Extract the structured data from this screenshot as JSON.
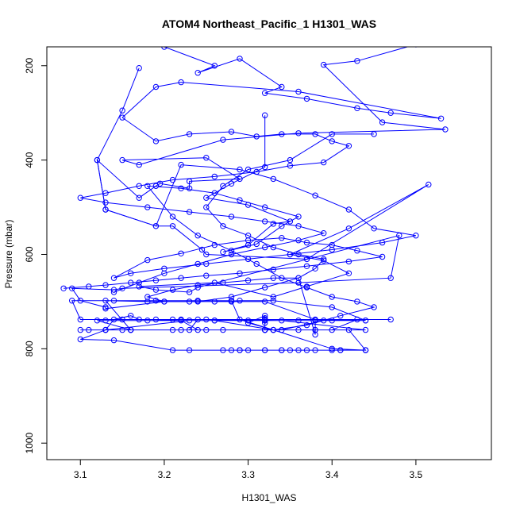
{
  "chart_data": {
    "type": "line",
    "title": "ATOM4 Northeast_Pacific_1 H1301_WAS",
    "xlabel": "H1301_WAS",
    "ylabel": "Pressure (mbar)",
    "xlim": [
      3.06,
      3.59
    ],
    "ylim": [
      1035,
      160
    ],
    "y_reversed": true,
    "x_ticks": [
      "3.1",
      "3.2",
      "3.3",
      "3.4",
      "3.5"
    ],
    "y_ticks": [
      "200",
      "400",
      "600",
      "800",
      "1000"
    ],
    "grid": false,
    "legend": "none",
    "series": [
      {
        "color": "#0000ff",
        "marker": "open-circle",
        "x": [
          3.5,
          3.43,
          3.39,
          3.46,
          3.535,
          3.36,
          3.27,
          3.17,
          3.15,
          3.25,
          3.29,
          3.23,
          3.23,
          3.195,
          3.19,
          3.17,
          3.12,
          3.13,
          3.19,
          3.21,
          3.245,
          3.25,
          3.37,
          3.515,
          3.42,
          3.35,
          3.39,
          3.42,
          3.37,
          3.33,
          3.26,
          3.17,
          3.19,
          3.23,
          3.24,
          3.48,
          3.47,
          3.36,
          3.15,
          3.14,
          3.09,
          3.1,
          3.13,
          3.13,
          3.2,
          3.26,
          3.29,
          3.33,
          3.4,
          3.44,
          3.39,
          3.34,
          3.24,
          3.22,
          3.19,
          3.15,
          3.1,
          3.09,
          3.14,
          3.19,
          3.24,
          3.28,
          3.29,
          3.33,
          3.38,
          3.4,
          3.43,
          3.47,
          3.32,
          3.24,
          3.23,
          3.21,
          3.16,
          3.15,
          3.13,
          3.1,
          3.14,
          3.21,
          3.27,
          3.29,
          3.34,
          3.38,
          3.41,
          3.44,
          3.4,
          3.33,
          3.26,
          3.18,
          3.13,
          3.12,
          3.16,
          3.25,
          3.32,
          3.36,
          3.44,
          3.34,
          3.25,
          3.22,
          3.21,
          3.17,
          3.16,
          3.14,
          3.13,
          3.11,
          3.1,
          3.13,
          3.23,
          3.26,
          3.3,
          3.32,
          3.36,
          3.4,
          3.44,
          3.38,
          3.32,
          3.28,
          3.23,
          3.18,
          3.13,
          3.16,
          3.22,
          3.27,
          3.32,
          3.38,
          3.42,
          3.44,
          3.41,
          3.36,
          3.32,
          3.29,
          3.32,
          3.34,
          3.37,
          3.4,
          3.44,
          3.35,
          3.3,
          3.28,
          3.23
        ],
        "y": [
          155,
          190,
          198,
          320,
          335,
          343,
          357,
          410,
          400,
          395,
          440,
          445,
          460,
          450,
          455,
          480,
          400,
          505,
          540,
          540,
          590,
          600,
          610,
          452,
          545,
          600,
          613,
          640,
          668,
          690,
          660,
          668,
          675,
          680,
          670,
          560,
          650,
          660,
          672,
          675,
          672,
          698,
          712,
          715,
          700,
          700,
          698,
          698,
          712,
          740,
          740,
          760,
          760,
          740,
          738,
          738,
          738,
          698,
          698,
          698,
          698,
          698,
          738,
          760,
          760,
          760,
          738,
          738,
          738,
          738,
          760,
          760,
          760,
          760,
          760,
          780,
          782,
          803,
          803,
          803,
          803,
          803,
          803,
          803,
          800,
          760,
          740,
          740,
          740,
          740,
          760,
          760,
          760,
          760,
          760,
          740,
          738,
          738,
          738,
          738,
          730,
          738,
          760,
          760,
          760,
          760,
          740,
          740,
          740,
          740,
          740,
          740,
          740,
          738,
          700,
          700,
          700,
          700,
          698,
          760,
          760,
          760,
          760,
          760,
          760,
          803,
          803,
          803,
          803,
          803,
          803,
          803,
          803,
          803,
          803,
          803,
          803,
          803,
          803
        ]
      },
      {
        "color": "#0000ff",
        "marker": "open-circle",
        "x": [
          3.17,
          3.15,
          3.12,
          3.13,
          3.19,
          3.22,
          3.29,
          3.33,
          3.38,
          3.42,
          3.45,
          3.5,
          3.46,
          3.4,
          3.35,
          3.3,
          3.25,
          3.2,
          3.16,
          3.14,
          3.18,
          3.22,
          3.26,
          3.3,
          3.34,
          3.37,
          3.4,
          3.43,
          3.46,
          3.42,
          3.37,
          3.33,
          3.29,
          3.25,
          3.22,
          3.19,
          3.16,
          3.13,
          3.11,
          3.08
        ],
        "y": [
          205,
          295,
          400,
          505,
          540,
          410,
          420,
          440,
          475,
          505,
          545,
          560,
          575,
          590,
          600,
          610,
          620,
          630,
          640,
          650,
          612,
          598,
          580,
          570,
          565,
          575,
          580,
          592,
          605,
          615,
          625,
          632,
          640,
          645,
          650,
          655,
          660,
          665,
          668,
          672
        ]
      },
      {
        "color": "#0000ff",
        "marker": "open-circle",
        "x": [
          3.2,
          3.26,
          3.24,
          3.29,
          3.34,
          3.32,
          3.37,
          3.43,
          3.47,
          3.53,
          3.36,
          3.22,
          3.19,
          3.15,
          3.19,
          3.23,
          3.28,
          3.31,
          3.34,
          3.38,
          3.4,
          3.42,
          3.39,
          3.35,
          3.31,
          3.26,
          3.21,
          3.17,
          3.13,
          3.1,
          3.13,
          3.18,
          3.23,
          3.28,
          3.32,
          3.36,
          3.39,
          3.36,
          3.32,
          3.28,
          3.24,
          3.2,
          3.17,
          3.14
        ],
        "y": [
          160,
          200,
          215,
          185,
          245,
          258,
          270,
          290,
          300,
          312,
          255,
          235,
          245,
          310,
          360,
          345,
          340,
          350,
          345,
          345,
          360,
          370,
          405,
          412,
          425,
          435,
          442,
          455,
          470,
          480,
          490,
          500,
          510,
          520,
          530,
          540,
          555,
          570,
          585,
          600,
          620,
          640,
          660,
          680
        ]
      },
      {
        "color": "#0000ff",
        "marker": "open-circle",
        "x": [
          3.32,
          3.32,
          3.28,
          3.25,
          3.3,
          3.35,
          3.33,
          3.3,
          3.27,
          3.31,
          3.34,
          3.36,
          3.32,
          3.29,
          3.26,
          3.22,
          3.18,
          3.21,
          3.24,
          3.28,
          3.31,
          3.34,
          3.37,
          3.4,
          3.43,
          3.45,
          3.41,
          3.37,
          3.33,
          3.3,
          3.32,
          3.32,
          3.32,
          3.32,
          3.32,
          3.32
        ],
        "y": [
          305,
          415,
          450,
          480,
          495,
          530,
          535,
          580,
          595,
          578,
          540,
          520,
          500,
          485,
          470,
          460,
          455,
          520,
          560,
          592,
          620,
          650,
          670,
          690,
          700,
          712,
          730,
          750,
          760,
          745,
          730,
          735,
          740,
          745,
          760,
          760
        ]
      },
      {
        "color": "#0000ff",
        "marker": "open-circle",
        "x": [
          3.45,
          3.4,
          3.35,
          3.3,
          3.27,
          3.25,
          3.27,
          3.3,
          3.33,
          3.36,
          3.39,
          3.38,
          3.36,
          3.32,
          3.28,
          3.24,
          3.2,
          3.18,
          3.21,
          3.24,
          3.27,
          3.3,
          3.33,
          3.36,
          3.38,
          3.38
        ],
        "y": [
          345,
          345,
          400,
          420,
          455,
          500,
          540,
          560,
          585,
          600,
          610,
          630,
          650,
          670,
          690,
          700,
          700,
          690,
          675,
          665,
          660,
          655,
          650,
          650,
          770,
          740
        ]
      }
    ]
  }
}
